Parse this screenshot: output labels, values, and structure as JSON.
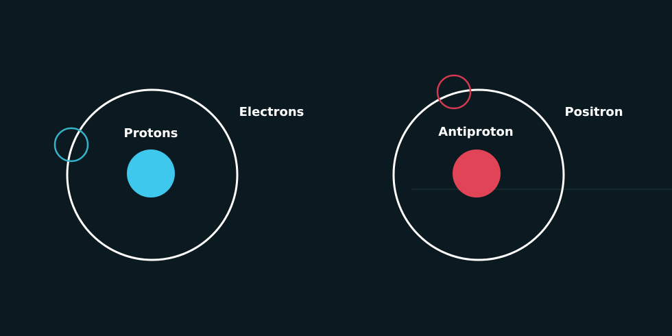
{
  "colors": {
    "background": "#0b1a20",
    "orbit": "#ffffff",
    "proton": "#3ec8ee",
    "electron": "#3ab1c9",
    "antiproton": "#e04456",
    "positron": "#d3384f",
    "faint_line": "#1b2c33"
  },
  "matter_atom": {
    "nucleus_label": "Protons",
    "orbiting_label": "Electrons"
  },
  "antimatter_atom": {
    "nucleus_label": "Antiproton",
    "orbiting_label": "Positron"
  }
}
